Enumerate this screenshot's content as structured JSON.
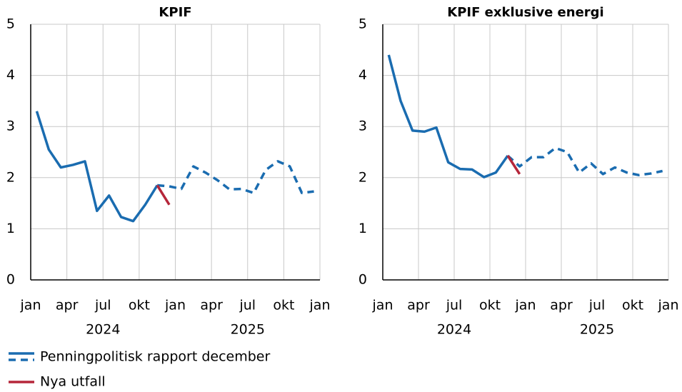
{
  "chart_data": [
    {
      "type": "line",
      "title": "KPIF",
      "x": [
        0.5,
        1.5,
        2.5,
        3.5,
        4.5,
        5.5,
        6.5,
        7.5,
        8.5,
        9.5,
        10.5,
        11.5,
        12.5,
        13.5,
        14.5,
        15.5,
        16.5,
        17.5,
        18.5,
        19.5,
        20.5,
        21.5,
        22.5,
        23.5
      ],
      "xlim": [
        0,
        24
      ],
      "xticks": [
        {
          "value": 0,
          "label": "jan"
        },
        {
          "value": 3,
          "label": "apr"
        },
        {
          "value": 6,
          "label": "jul"
        },
        {
          "value": 9,
          "label": "okt"
        },
        {
          "value": 12,
          "label": "jan"
        },
        {
          "value": 15,
          "label": "apr"
        },
        {
          "value": 18,
          "label": "jul"
        },
        {
          "value": 21,
          "label": "okt"
        },
        {
          "value": 24,
          "label": "jan"
        }
      ],
      "year_labels": [
        {
          "value": 6,
          "label": "2024"
        },
        {
          "value": 18,
          "label": "2025"
        }
      ],
      "ylim": [
        0,
        5
      ],
      "yticks": [
        0,
        1,
        2,
        3,
        4,
        5
      ],
      "grid": true,
      "series": [
        {
          "color": "#1a6cb0",
          "dash": false,
          "values": [
            3.3,
            2.55,
            2.2,
            2.25,
            2.32,
            1.35,
            1.65,
            1.23,
            1.15,
            1.47,
            1.85,
            null,
            null,
            null,
            null,
            null,
            null,
            null,
            null,
            null,
            null,
            null,
            null,
            null
          ]
        },
        {
          "color": "#1a6cb0",
          "dash": true,
          "values": [
            null,
            null,
            null,
            null,
            null,
            null,
            null,
            null,
            null,
            null,
            1.85,
            1.83,
            1.78,
            2.22,
            2.1,
            1.95,
            1.77,
            1.78,
            1.7,
            2.15,
            2.32,
            2.22,
            1.7,
            1.73
          ]
        },
        {
          "color": "#b5263a",
          "dash": false,
          "values": [
            null,
            null,
            null,
            null,
            null,
            null,
            null,
            null,
            null,
            null,
            1.85,
            1.47,
            null,
            null,
            null,
            null,
            null,
            null,
            null,
            null,
            null,
            null,
            null,
            null
          ]
        }
      ]
    },
    {
      "type": "line",
      "title": "KPIF exklusive energi",
      "x": [
        0.5,
        1.5,
        2.5,
        3.5,
        4.5,
        5.5,
        6.5,
        7.5,
        8.5,
        9.5,
        10.5,
        11.5,
        12.5,
        13.5,
        14.5,
        15.5,
        16.5,
        17.5,
        18.5,
        19.5,
        20.5,
        21.5,
        22.5,
        23.5
      ],
      "xlim": [
        0,
        24
      ],
      "xticks": [
        {
          "value": 0,
          "label": "jan"
        },
        {
          "value": 3,
          "label": "apr"
        },
        {
          "value": 6,
          "label": "jul"
        },
        {
          "value": 9,
          "label": "okt"
        },
        {
          "value": 12,
          "label": "jan"
        },
        {
          "value": 15,
          "label": "apr"
        },
        {
          "value": 18,
          "label": "jul"
        },
        {
          "value": 21,
          "label": "okt"
        },
        {
          "value": 24,
          "label": "jan"
        }
      ],
      "year_labels": [
        {
          "value": 6,
          "label": "2024"
        },
        {
          "value": 18,
          "label": "2025"
        }
      ],
      "ylim": [
        0,
        5
      ],
      "yticks": [
        0,
        1,
        2,
        3,
        4,
        5
      ],
      "grid": true,
      "series": [
        {
          "color": "#1a6cb0",
          "dash": false,
          "values": [
            4.4,
            3.5,
            2.92,
            2.9,
            2.98,
            2.3,
            2.17,
            2.16,
            2.01,
            2.1,
            2.43,
            null,
            null,
            null,
            null,
            null,
            null,
            null,
            null,
            null,
            null,
            null,
            null,
            null
          ]
        },
        {
          "color": "#1a6cb0",
          "dash": true,
          "values": [
            null,
            null,
            null,
            null,
            null,
            null,
            null,
            null,
            null,
            null,
            2.43,
            2.22,
            2.4,
            2.4,
            2.58,
            2.5,
            2.1,
            2.28,
            2.07,
            2.2,
            2.1,
            2.05,
            2.08,
            2.13
          ]
        },
        {
          "color": "#b5263a",
          "dash": false,
          "values": [
            null,
            null,
            null,
            null,
            null,
            null,
            null,
            null,
            null,
            null,
            2.43,
            2.07,
            null,
            null,
            null,
            null,
            null,
            null,
            null,
            null,
            null,
            null,
            null,
            null
          ]
        }
      ]
    }
  ],
  "legend": [
    {
      "name": "Penningpolitisk rapport december",
      "color": "#1a6cb0"
    },
    {
      "name": "Nya utfall",
      "color": "#b5263a"
    }
  ]
}
